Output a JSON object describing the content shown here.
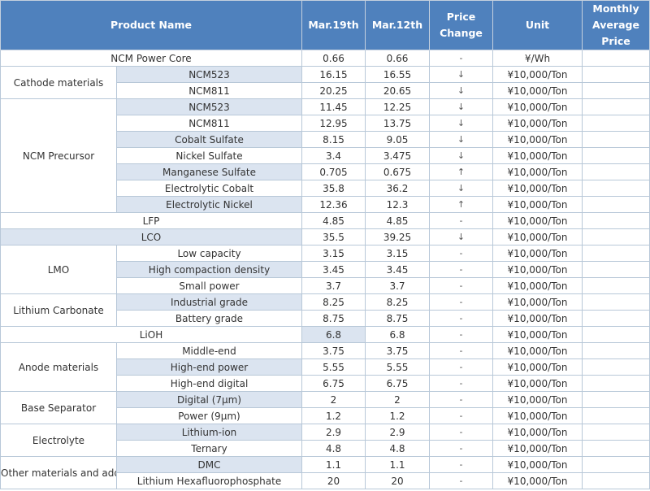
{
  "columns": {
    "product_name": "Product Name",
    "mar19": "Mar.19th",
    "mar12": "Mar.12th",
    "price_change": "Price Change",
    "unit": "Unit",
    "monthly_avg": "Monthly Average Price"
  },
  "categories": {
    "cathode": "Cathode materials",
    "ncm_precursor": "NCM Precursor",
    "lmo": "LMO",
    "lithium_carbonate": "Lithium Carbonate",
    "anode": "Anode materials",
    "separator": "Base Separator",
    "electrolyte": "Electrolyte",
    "other": "Other materials and additives"
  },
  "rows": [
    {
      "product": "NCM Power Core",
      "mar19": "0.66",
      "mar12": "0.66",
      "change": "-",
      "unit": "¥/Wh",
      "avg": ""
    },
    {
      "product": "NCM523",
      "mar19": "16.15",
      "mar12": "16.55",
      "change": "↓",
      "unit": "¥10,000/Ton",
      "avg": ""
    },
    {
      "product": "NCM811",
      "mar19": "20.25",
      "mar12": "20.65",
      "change": "↓",
      "unit": "¥10,000/Ton",
      "avg": ""
    },
    {
      "product": "NCM523",
      "mar19": "11.45",
      "mar12": "12.25",
      "change": "↓",
      "unit": "¥10,000/Ton",
      "avg": ""
    },
    {
      "product": "NCM811",
      "mar19": "12.95",
      "mar12": "13.75",
      "change": "↓",
      "unit": "¥10,000/Ton",
      "avg": ""
    },
    {
      "product": "Cobalt Sulfate",
      "mar19": "8.15",
      "mar12": "9.05",
      "change": "↓",
      "unit": "¥10,000/Ton",
      "avg": ""
    },
    {
      "product": "Nickel Sulfate",
      "mar19": "3.4",
      "mar12": "3.475",
      "change": "↓",
      "unit": "¥10,000/Ton",
      "avg": ""
    },
    {
      "product": "Manganese Sulfate",
      "mar19": "0.705",
      "mar12": "0.675",
      "change": "↑",
      "unit": "¥10,000/Ton",
      "avg": ""
    },
    {
      "product": "Electrolytic Cobalt",
      "mar19": "35.8",
      "mar12": "36.2",
      "change": "↓",
      "unit": "¥10,000/Ton",
      "avg": ""
    },
    {
      "product": "Electrolytic Nickel",
      "mar19": "12.36",
      "mar12": "12.3",
      "change": "↑",
      "unit": "¥10,000/Ton",
      "avg": ""
    },
    {
      "product": "LFP",
      "mar19": "4.85",
      "mar12": "4.85",
      "change": "-",
      "unit": "¥10,000/Ton",
      "avg": ""
    },
    {
      "product": "LCO",
      "mar19": "35.5",
      "mar12": "39.25",
      "change": "↓",
      "unit": "¥10,000/Ton",
      "avg": ""
    },
    {
      "product": "Low capacity",
      "mar19": "3.15",
      "mar12": "3.15",
      "change": "-",
      "unit": "¥10,000/Ton",
      "avg": ""
    },
    {
      "product": "High compaction density",
      "mar19": "3.45",
      "mar12": "3.45",
      "change": "-",
      "unit": "¥10,000/Ton",
      "avg": ""
    },
    {
      "product": "Small power",
      "mar19": "3.7",
      "mar12": "3.7",
      "change": "-",
      "unit": "¥10,000/Ton",
      "avg": ""
    },
    {
      "product": "Industrial grade",
      "mar19": "8.25",
      "mar12": "8.25",
      "change": "-",
      "unit": "¥10,000/Ton",
      "avg": ""
    },
    {
      "product": "Battery grade",
      "mar19": "8.75",
      "mar12": "8.75",
      "change": "-",
      "unit": "¥10,000/Ton",
      "avg": ""
    },
    {
      "product": "LiOH",
      "mar19": "6.8",
      "mar12": "6.8",
      "change": "-",
      "unit": "¥10,000/Ton",
      "avg": ""
    },
    {
      "product": "Middle-end",
      "mar19": "3.75",
      "mar12": "3.75",
      "change": "-",
      "unit": "¥10,000/Ton",
      "avg": ""
    },
    {
      "product": "High-end power",
      "mar19": "5.55",
      "mar12": "5.55",
      "change": "-",
      "unit": "¥10,000/Ton",
      "avg": ""
    },
    {
      "product": "High-end digital",
      "mar19": "6.75",
      "mar12": "6.75",
      "change": "-",
      "unit": "¥10,000/Ton",
      "avg": ""
    },
    {
      "product": "Digital (7μm)",
      "mar19": "2",
      "mar12": "2",
      "change": "-",
      "unit": "¥10,000/Ton",
      "avg": ""
    },
    {
      "product": "Power (9μm)",
      "mar19": "1.2",
      "mar12": "1.2",
      "change": "-",
      "unit": "¥10,000/Ton",
      "avg": ""
    },
    {
      "product": "Lithium-ion",
      "mar19": "2.9",
      "mar12": "2.9",
      "change": "-",
      "unit": "¥10,000/Ton",
      "avg": ""
    },
    {
      "product": "Ternary",
      "mar19": "4.8",
      "mar12": "4.8",
      "change": "-",
      "unit": "¥10,000/Ton",
      "avg": ""
    },
    {
      "product": "DMC",
      "mar19": "1.1",
      "mar12": "1.1",
      "change": "-",
      "unit": "¥10,000/Ton",
      "avg": ""
    },
    {
      "product": "Lithium Hexafluorophosphate",
      "mar19": "20",
      "mar12": "20",
      "change": "-",
      "unit": "¥10,000/Ton",
      "avg": ""
    }
  ]
}
